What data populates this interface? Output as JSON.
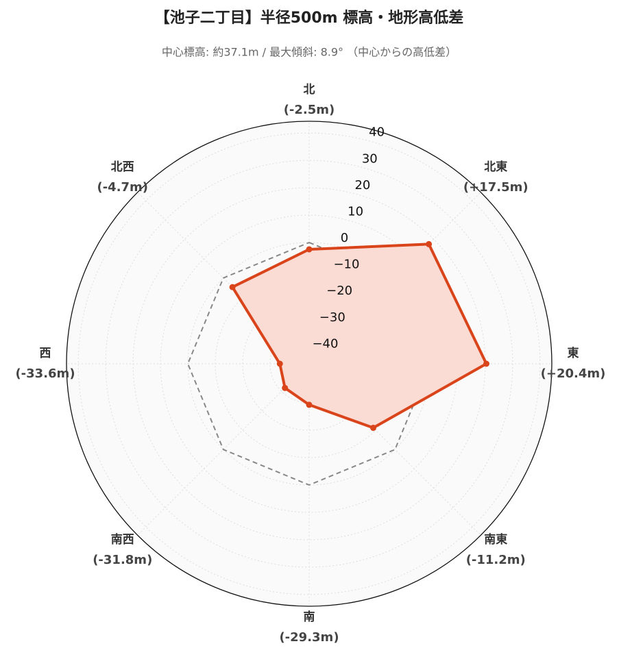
{
  "chart_data": {
    "type": "radar",
    "title": "【池子二丁目】半径500m 標高・地形高低差",
    "subtitle": "中心標高: 約37.1m / 最大傾斜: 8.9° （中心からの高低差）",
    "categories": [
      "北",
      "北東",
      "東",
      "南東",
      "南",
      "南西",
      "西",
      "北西"
    ],
    "series": [
      {
        "color": "#d9441b",
        "fill": "#fbdcd4",
        "values": [
          -2.5,
          17.5,
          20.4,
          -11.2,
          -29.3,
          -31.8,
          -33.6,
          -4.7
        ],
        "value_labels": [
          "(-2.5m)",
          "(+17.5m)",
          "(+20.4m)",
          "(-11.2m)",
          "(-29.3m)",
          "(-31.8m)",
          "(-33.6m)",
          "(-4.7m)"
        ]
      },
      {
        "color": "#888888",
        "dash": true,
        "values": [
          0,
          0,
          0,
          0,
          0,
          0,
          0,
          0
        ]
      }
    ],
    "ylim": [
      -44.3,
      44.3
    ],
    "yticks": [
      {
        "value": -40,
        "label": "−40"
      },
      {
        "value": -30,
        "label": "−30"
      },
      {
        "value": -20,
        "label": "−20"
      },
      {
        "value": -10,
        "label": "−10"
      },
      0,
      10,
      20,
      30,
      40
    ],
    "grid": true
  }
}
